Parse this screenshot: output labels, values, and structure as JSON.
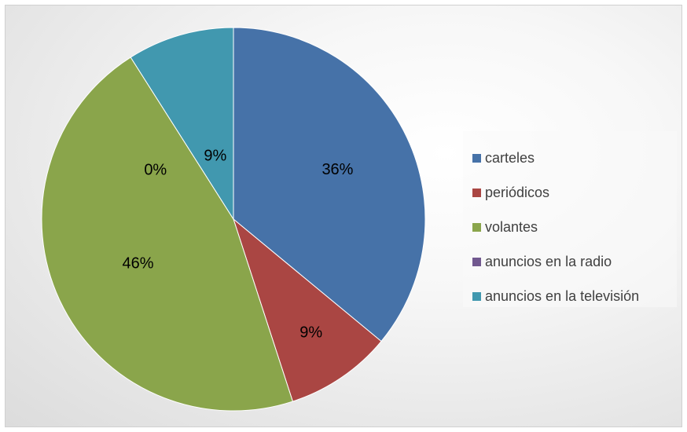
{
  "chart_data": {
    "type": "pie",
    "title": "",
    "categories": [
      "carteles",
      "periódicos",
      "volantes",
      "anuncios en la radio",
      "anuncios en la televisión"
    ],
    "values": [
      36,
      9,
      46,
      0,
      9
    ],
    "labels": [
      "36%",
      "9%",
      "46%",
      "0%",
      "9%"
    ],
    "colors": [
      "#4672A8",
      "#AA4643",
      "#8AA54B",
      "#71588F",
      "#4198AF"
    ],
    "start_angle_deg": 0,
    "direction": "clockwise",
    "legend_position": "right",
    "background": "gradient-gray"
  }
}
